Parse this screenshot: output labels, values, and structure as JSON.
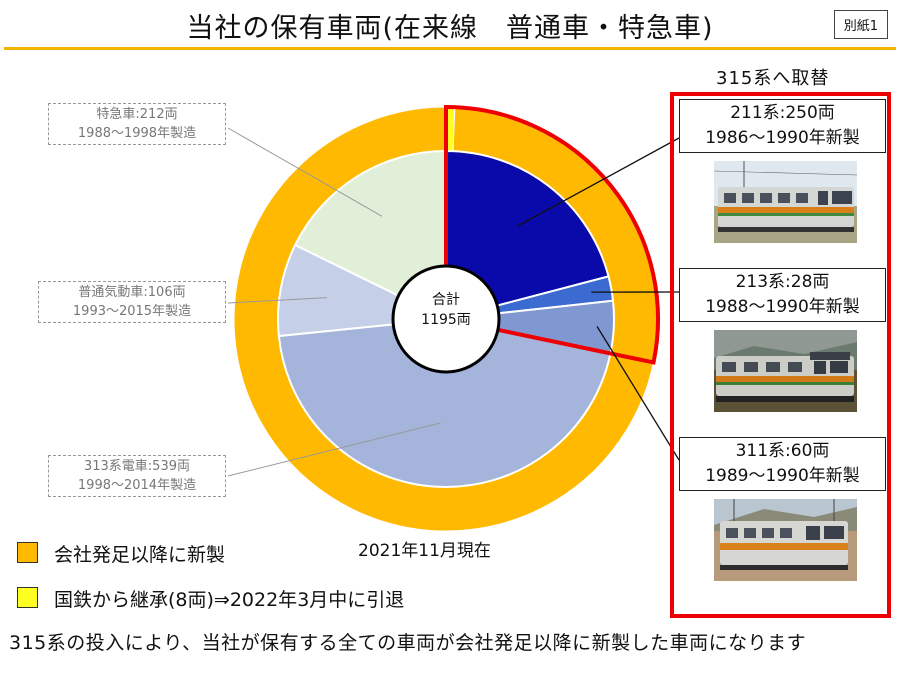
{
  "header": {
    "title": "当社の保有車両(在来線　普通車・特急車)",
    "attachment_label": "別紙1"
  },
  "chart_data": {
    "type": "pie",
    "center_label": [
      "合計",
      "1195両"
    ],
    "inner_ring": [
      {
        "name": "211系",
        "value": 250,
        "color": "#0a0aaa"
      },
      {
        "name": "213系",
        "value": 28,
        "color": "#3b6bd0"
      },
      {
        "name": "311系",
        "value": 60,
        "color": "#7f98d2"
      },
      {
        "name": "313系電車",
        "value": 539,
        "color": "#a5b4db"
      },
      {
        "name": "普通気動車",
        "value": 106,
        "color": "#c5cfe8"
      },
      {
        "name": "特急車",
        "value": 212,
        "color": "#e2efd8"
      }
    ],
    "outer_ring": [
      {
        "name": "国鉄から継承(8両)",
        "value": 8,
        "color": "#ffff22"
      },
      {
        "name": "会社発足以降に新製",
        "value": 1187,
        "color": "#ffb900"
      }
    ],
    "highlight_series": [
      "211系",
      "213系",
      "311系"
    ],
    "highlight_color": "#ee0000"
  },
  "callouts_left": [
    {
      "line1": "特急車:212両",
      "line2": "1988～1998年製造"
    },
    {
      "line1": "普通気動車:106両",
      "line2": "1993～2015年製造"
    },
    {
      "line1": "313系電車:539両",
      "line2": "1998～2014年製造"
    }
  ],
  "replace_panel": {
    "heading": "315系へ取替",
    "items": [
      {
        "line1": "211系:250両",
        "line2": "1986～1990年新製",
        "photo": "train-211-photo"
      },
      {
        "line1": "213系:28両",
        "line2": "1988～1990年新製",
        "photo": "train-213-photo"
      },
      {
        "line1": "311系:60両",
        "line2": "1989～1990年新製",
        "photo": "train-311-photo"
      }
    ]
  },
  "date_label": "2021年11月現在",
  "legend": [
    {
      "label": "会社発足以降に新製",
      "color": "#ffb900"
    },
    {
      "label": "国鉄から継承(8両)⇒2022年3月中に引退",
      "color": "#ffff22"
    }
  ],
  "footer": "315系の投入により、当社が保有する全ての車両が会社発足以降に新製した車両になります"
}
